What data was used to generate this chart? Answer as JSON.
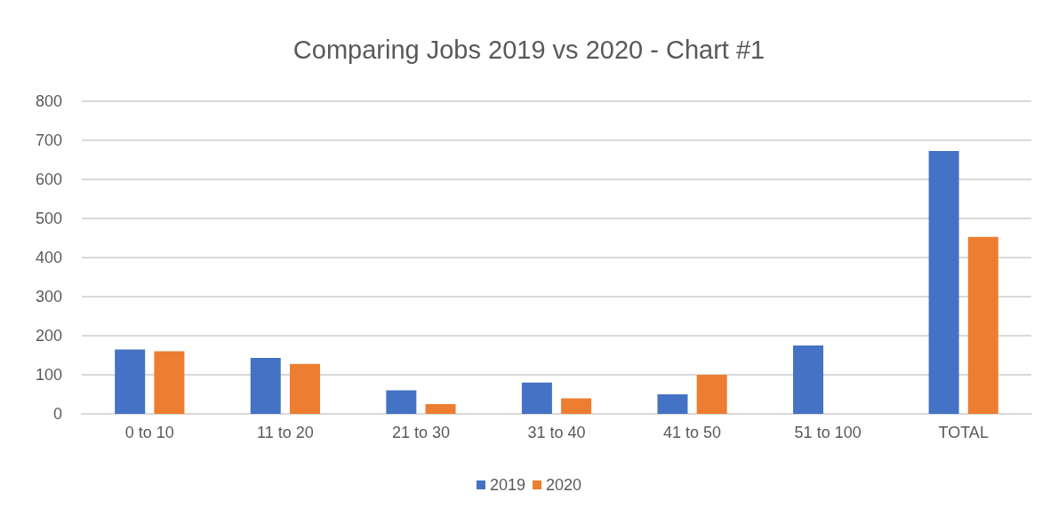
{
  "chart_data": {
    "type": "bar",
    "title": "Comparing Jobs 2019 vs 2020 - Chart #1",
    "categories": [
      "0 to 10",
      "11 to 20",
      "21 to 30",
      "31 to 40",
      "41 to 50",
      "51 to 100",
      "TOTAL"
    ],
    "series": [
      {
        "name": "2019",
        "color": "#4472c4",
        "values": [
          165,
          143,
          60,
          80,
          50,
          175,
          673
        ]
      },
      {
        "name": "2020",
        "color": "#ed7d31",
        "values": [
          160,
          128,
          25,
          40,
          100,
          0,
          453
        ]
      }
    ],
    "ylim": [
      0,
      800
    ],
    "yticks": [
      0,
      100,
      200,
      300,
      400,
      500,
      600,
      700,
      800
    ],
    "grid": "y",
    "legend": "bottom"
  }
}
